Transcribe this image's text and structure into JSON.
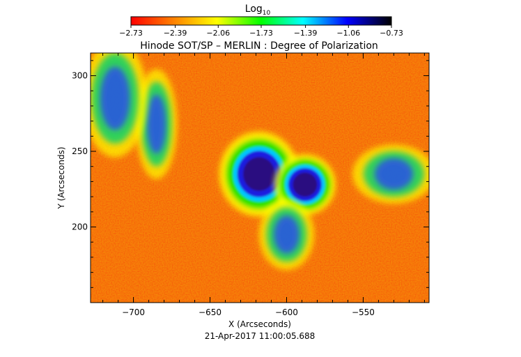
{
  "chart_data": {
    "type": "heatmap",
    "title": "Hinode SOT/SP – MERLIN : Degree of Polarization",
    "xlabel": "X (Arcseconds)",
    "ylabel": "Y (Arcseconds)",
    "timestamp": "21-Apr-2017 11:00:05.688",
    "xlim": [
      -728,
      -507
    ],
    "ylim": [
      150,
      315
    ],
    "x_ticks": [
      -700,
      -650,
      -600,
      -550
    ],
    "x_tick_labels": [
      "−700",
      "−650",
      "−600",
      "−550"
    ],
    "y_ticks": [
      200,
      250,
      300
    ],
    "y_tick_labels": [
      "200",
      "250",
      "300"
    ],
    "colorbar": {
      "label": "Log",
      "label_subscript": "10",
      "range": [
        -2.73,
        -0.73
      ],
      "ticks": [
        -2.73,
        -2.39,
        -2.06,
        -1.73,
        -1.39,
        -1.06,
        -0.73
      ],
      "tick_labels": [
        "−2.73",
        "−2.39",
        "−2.06",
        "−1.73",
        "−1.39",
        "−1.06",
        "−0.73"
      ],
      "colors": [
        "#ff0000",
        "#ff7f00",
        "#ffff00",
        "#00ff00",
        "#00ffff",
        "#0000ff",
        "#000000"
      ]
    },
    "features": [
      {
        "kind": "sunspot",
        "x": -618,
        "y": 235,
        "rx": 13,
        "ry": 14
      },
      {
        "kind": "sunspot",
        "x": -588,
        "y": 228,
        "rx": 10,
        "ry": 10
      },
      {
        "kind": "plage",
        "x": -685,
        "y": 268,
        "rx": 9,
        "ry": 28
      },
      {
        "kind": "plage",
        "x": -712,
        "y": 285,
        "rx": 14,
        "ry": 30
      },
      {
        "kind": "plage",
        "x": -530,
        "y": 235,
        "rx": 18,
        "ry": 15
      },
      {
        "kind": "plage",
        "x": -600,
        "y": 195,
        "rx": 12,
        "ry": 18
      }
    ]
  }
}
